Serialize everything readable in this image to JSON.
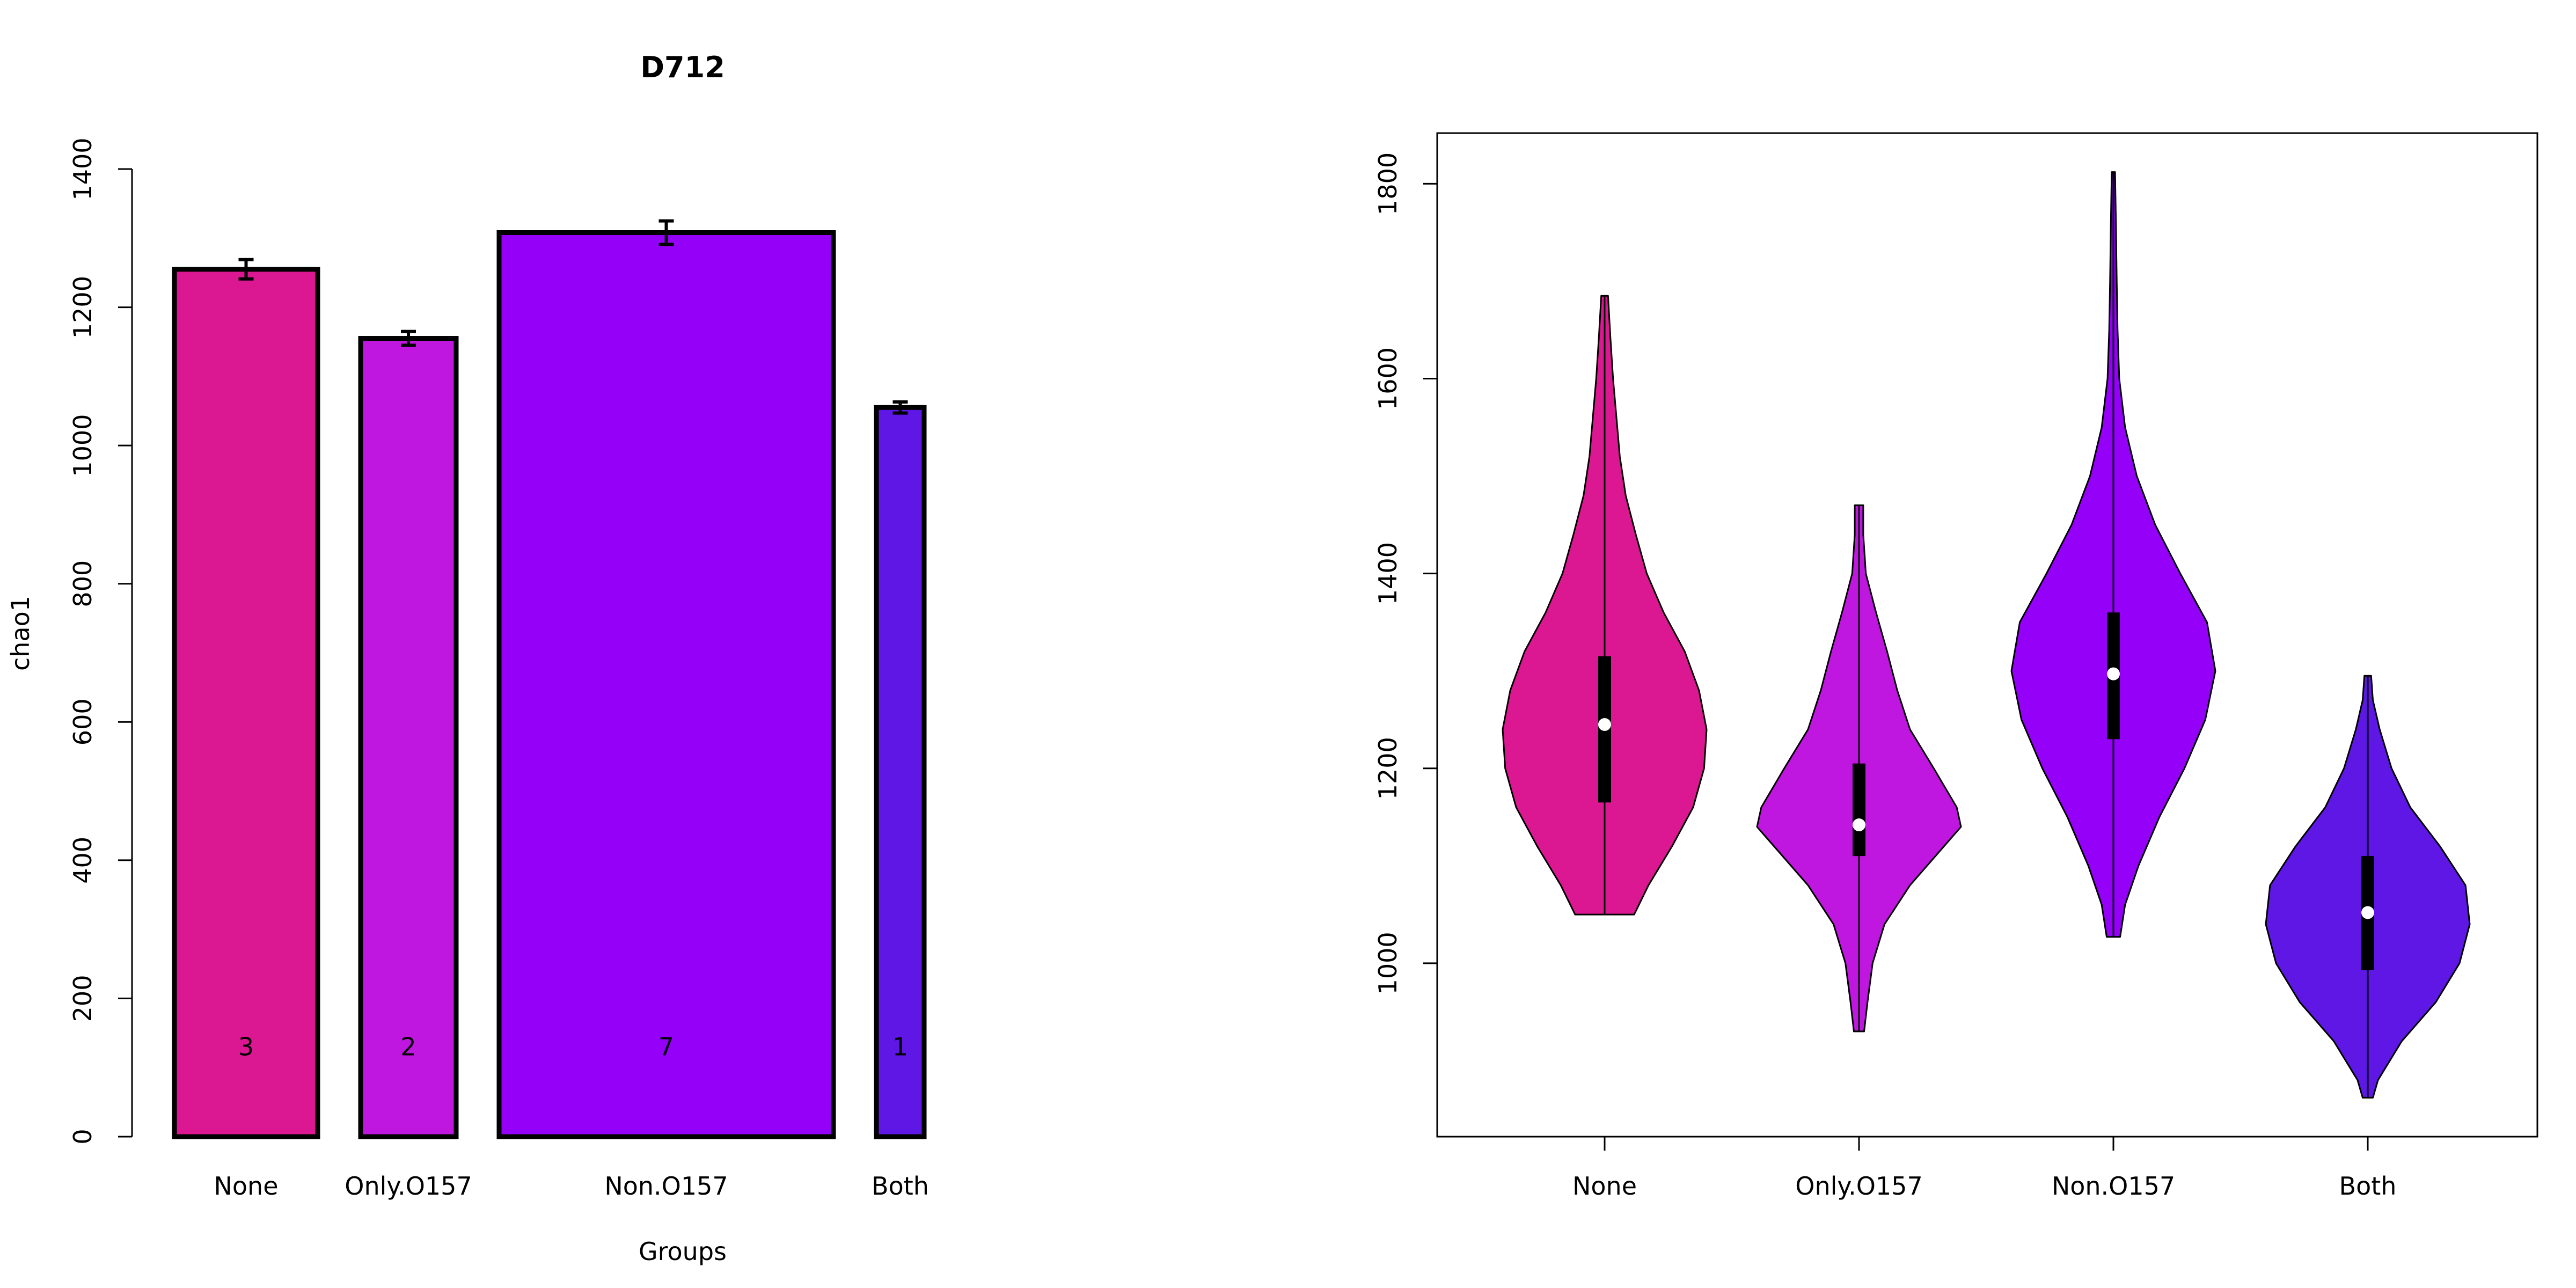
{
  "chart_data": [
    {
      "type": "bar",
      "title": "D712",
      "xlabel": "Groups",
      "ylabel": "chao1",
      "categories": [
        "None",
        "Only.O157",
        "Non.O157",
        "Both"
      ],
      "values": [
        1255,
        1155,
        1308,
        1055
      ],
      "error": [
        14,
        10,
        17,
        8
      ],
      "counts": [
        3,
        2,
        7,
        1
      ],
      "colors": [
        "#DB1791",
        "#C017E0",
        "#9400F8",
        "#5F17E6"
      ],
      "ylim": [
        0,
        1400
      ],
      "yticks": [
        0,
        200,
        400,
        600,
        800,
        1000,
        1200,
        1400
      ],
      "count_label_y": 130
    },
    {
      "type": "violin",
      "categories": [
        "None",
        "Only.O157",
        "Non.O157",
        "Both"
      ],
      "colors": [
        "#DB1791",
        "#C017E0",
        "#9400F8",
        "#5F17E6"
      ],
      "ylim": [
        822,
        1852
      ],
      "yticks": [
        1000,
        1200,
        1400,
        1600,
        1800
      ],
      "series": [
        {
          "min": 1050,
          "q1": 1165,
          "median": 1245,
          "q3": 1315,
          "max": 1685,
          "profile": [
            [
              1050,
              35
            ],
            [
              1080,
              52
            ],
            [
              1120,
              80
            ],
            [
              1160,
              105
            ],
            [
              1200,
              118
            ],
            [
              1240,
              121
            ],
            [
              1280,
              112
            ],
            [
              1320,
              95
            ],
            [
              1360,
              70
            ],
            [
              1400,
              50
            ],
            [
              1440,
              37
            ],
            [
              1480,
              25
            ],
            [
              1520,
              18
            ],
            [
              1560,
              14
            ],
            [
              1600,
              10
            ],
            [
              1640,
              7
            ],
            [
              1685,
              4
            ]
          ]
        },
        {
          "min": 930,
          "q1": 1110,
          "median": 1142,
          "q3": 1205,
          "max": 1470,
          "profile": [
            [
              930,
              6
            ],
            [
              960,
              10
            ],
            [
              1000,
              16
            ],
            [
              1040,
              30
            ],
            [
              1080,
              60
            ],
            [
              1120,
              100
            ],
            [
              1140,
              120
            ],
            [
              1160,
              115
            ],
            [
              1200,
              88
            ],
            [
              1240,
              60
            ],
            [
              1280,
              45
            ],
            [
              1320,
              33
            ],
            [
              1360,
              20
            ],
            [
              1400,
              8
            ],
            [
              1440,
              5
            ],
            [
              1470,
              5
            ]
          ]
        },
        {
          "min": 1027,
          "q1": 1230,
          "median": 1297,
          "q3": 1360,
          "max": 1812,
          "profile": [
            [
              1027,
              8
            ],
            [
              1060,
              14
            ],
            [
              1100,
              30
            ],
            [
              1150,
              55
            ],
            [
              1200,
              85
            ],
            [
              1250,
              110
            ],
            [
              1300,
              122
            ],
            [
              1350,
              112
            ],
            [
              1400,
              80
            ],
            [
              1450,
              50
            ],
            [
              1500,
              28
            ],
            [
              1550,
              14
            ],
            [
              1600,
              7
            ],
            [
              1650,
              5
            ],
            [
              1700,
              4
            ],
            [
              1760,
              3
            ],
            [
              1812,
              2
            ]
          ]
        },
        {
          "min": 862,
          "q1": 993,
          "median": 1052,
          "q3": 1110,
          "max": 1295,
          "profile": [
            [
              862,
              6
            ],
            [
              880,
              12
            ],
            [
              920,
              40
            ],
            [
              960,
              80
            ],
            [
              1000,
              108
            ],
            [
              1040,
              120
            ],
            [
              1080,
              115
            ],
            [
              1120,
              85
            ],
            [
              1160,
              50
            ],
            [
              1200,
              28
            ],
            [
              1240,
              14
            ],
            [
              1270,
              6
            ],
            [
              1295,
              4
            ]
          ]
        }
      ]
    }
  ]
}
